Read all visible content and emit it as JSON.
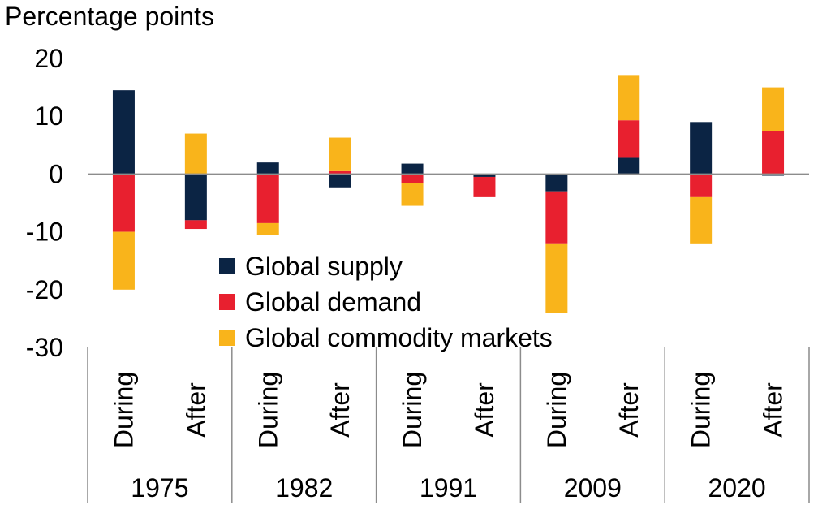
{
  "colors": {
    "global_supply": "#0b2444",
    "global_demand": "#e8202f",
    "global_commodity_markets": "#f9b41b"
  },
  "chart_data": {
    "type": "bar",
    "stacked": true,
    "title": "",
    "ylabel": "Percentage points",
    "xlabel": "",
    "ylim": [
      -30,
      20
    ],
    "yticks": [
      20,
      10,
      0,
      -10,
      -20,
      -30
    ],
    "groups": [
      "1975",
      "1982",
      "1991",
      "2009",
      "2020"
    ],
    "categories": [
      "During",
      "After",
      "During",
      "After",
      "During",
      "After",
      "During",
      "After",
      "During",
      "After"
    ],
    "legend_position": "center-left",
    "series": [
      {
        "name": "Global supply",
        "color_key": "global_supply",
        "values": [
          14.5,
          -8.0,
          2.0,
          -2.3,
          1.8,
          -0.5,
          -3.0,
          2.8,
          9.0,
          -0.3
        ]
      },
      {
        "name": "Global demand",
        "color_key": "global_demand",
        "values": [
          -10.0,
          -1.5,
          -8.5,
          0.5,
          -1.5,
          -3.5,
          -9.0,
          6.5,
          -4.0,
          7.5
        ]
      },
      {
        "name": "Global commodity markets",
        "color_key": "global_commodity_markets",
        "values": [
          -10.0,
          7.0,
          -2.0,
          5.8,
          -4.0,
          0.0,
          -12.0,
          7.7,
          -8.0,
          7.5
        ]
      }
    ]
  }
}
